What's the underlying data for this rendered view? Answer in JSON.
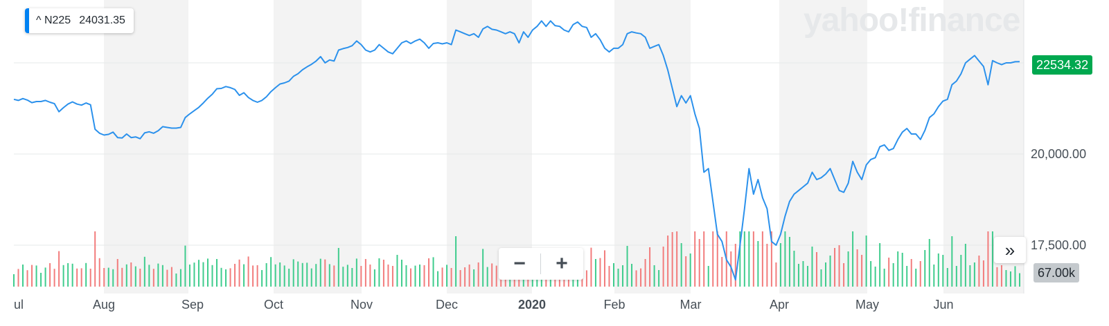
{
  "legend": {
    "symbol": "^ N225",
    "value": "24031.35"
  },
  "watermark": "yahoo!finance",
  "price_tag": "22534.32",
  "volume_tag": "67.00k",
  "controls": {
    "zoom_out": "−",
    "zoom_in": "+",
    "more": "»"
  },
  "colors": {
    "line": "#2b91ec",
    "band": "#f3f3f3",
    "vol_up": "#3fcc8d",
    "vol_down": "#f27c7c",
    "price_tag_bg": "#00a84f",
    "legend_accent": "#0081f2"
  },
  "chart_data": {
    "type": "line",
    "title": "",
    "x_axis": {
      "tick_labels": [
        "ul",
        "Aug",
        "Sep",
        "Oct",
        "Nov",
        "Dec",
        "2020",
        "Feb",
        "Mar",
        "Apr",
        "May",
        "Jun"
      ],
      "bold_tick": "2020"
    },
    "y_axis": {
      "ticks": [
        17500,
        20000
      ],
      "tick_labels": [
        "17,500.00",
        "20,000.00"
      ]
    },
    "y_range": [
      16500,
      24100
    ],
    "grid": true,
    "series": [
      {
        "values": [
          21500,
          21470,
          21520,
          21480,
          21410,
          21440,
          21440,
          21470,
          21420,
          21380,
          21160,
          21270,
          21370,
          21430,
          21370,
          21340,
          21400,
          21350,
          20680,
          20570,
          20520,
          20540,
          20600,
          20450,
          20440,
          20550,
          20450,
          20470,
          20420,
          20580,
          20610,
          20570,
          20640,
          20750,
          20730,
          20710,
          20710,
          20730,
          21000,
          21100,
          21190,
          21280,
          21400,
          21530,
          21640,
          21790,
          21800,
          21850,
          21820,
          21770,
          21610,
          21680,
          21550,
          21470,
          21420,
          21470,
          21570,
          21710,
          21820,
          21920,
          21950,
          22000,
          22130,
          22200,
          22310,
          22390,
          22460,
          22550,
          22670,
          22500,
          22580,
          22550,
          22850,
          22890,
          22920,
          22970,
          23100,
          23000,
          22850,
          22800,
          22850,
          23000,
          22900,
          22800,
          22750,
          22900,
          23050,
          23100,
          23030,
          23100,
          23150,
          23050,
          22900,
          23030,
          23050,
          23020,
          23050,
          23000,
          23400,
          23350,
          23300,
          23250,
          23300,
          23200,
          23430,
          23500,
          23420,
          23400,
          23350,
          23300,
          23350,
          23300,
          23050,
          23350,
          23200,
          23400,
          23500,
          23650,
          23500,
          23650,
          23520,
          23500,
          23400,
          23350,
          23550,
          23620,
          23500,
          23470,
          23200,
          23300,
          23130,
          22900,
          22800,
          22900,
          22900,
          23000,
          23300,
          23350,
          23320,
          23300,
          23200,
          22900,
          22950,
          23000,
          22700,
          22300,
          21800,
          21300,
          21600,
          21400,
          21600,
          21100,
          20700,
          19500,
          19600,
          18700,
          17800,
          17600,
          17100,
          16900,
          16550,
          17500,
          18500,
          19600,
          18900,
          19300,
          18800,
          18500,
          17600,
          17500,
          17800,
          18300,
          18700,
          18900,
          19000,
          19100,
          19200,
          19500,
          19300,
          19350,
          19450,
          19600,
          19300,
          19000,
          18950,
          19200,
          19800,
          19500,
          19300,
          19700,
          19850,
          19900,
          20200,
          20250,
          20100,
          20150,
          20400,
          20600,
          20700,
          20550,
          20550,
          20400,
          20650,
          21000,
          21100,
          21300,
          21450,
          21500,
          21900,
          22000,
          22200,
          22500,
          22600,
          22700,
          22550,
          22400,
          21900,
          22560,
          22500,
          22450,
          22500,
          22500,
          22530,
          22534
        ]
      }
    ]
  }
}
